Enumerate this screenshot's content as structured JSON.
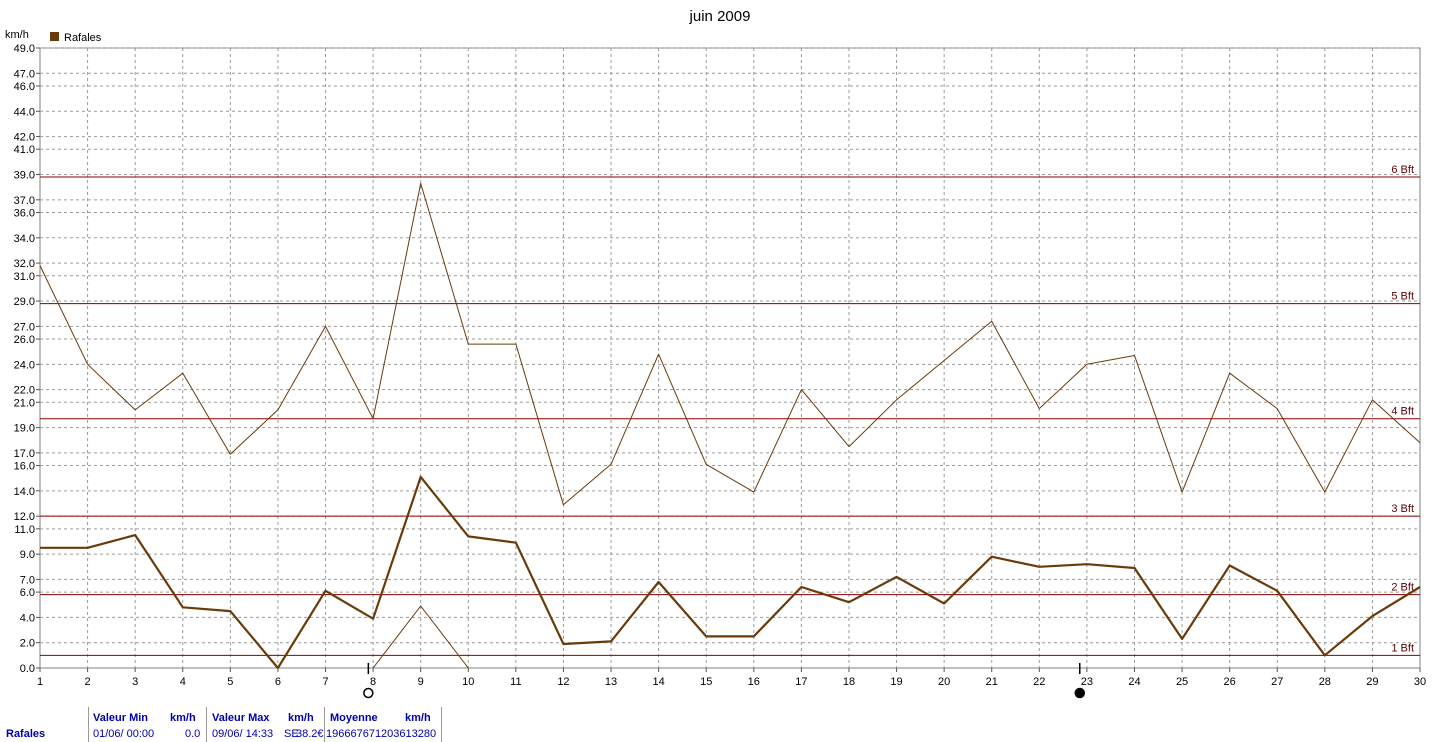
{
  "chart_data": {
    "type": "line",
    "title": "juin 2009",
    "ylabel": "km/h",
    "legend": "Rafales",
    "legend_color": "#6b3a0a",
    "x": [
      1,
      2,
      3,
      4,
      5,
      6,
      7,
      8,
      9,
      10,
      11,
      12,
      13,
      14,
      15,
      16,
      17,
      18,
      19,
      20,
      21,
      22,
      23,
      24,
      25,
      26,
      27,
      28,
      29,
      30
    ],
    "x_ticks": [
      "1",
      "2",
      "3",
      "4",
      "5",
      "6",
      "7",
      "8",
      "9",
      "10",
      "11",
      "12",
      "13",
      "14",
      "15",
      "16",
      "17",
      "18",
      "19",
      "20",
      "21",
      "22",
      "23",
      "24",
      "25",
      "26",
      "27",
      "28",
      "29",
      "30"
    ],
    "y_ticks": [
      "0.0",
      "2.0",
      "4.0",
      "6.0",
      "7.0",
      "9.0",
      "11.0",
      "12.0",
      "14.0",
      "16.0",
      "17.0",
      "19.0",
      "21.0",
      "22.0",
      "24.0",
      "26.0",
      "27.0",
      "29.0",
      "31.0",
      "32.0",
      "34.0",
      "36.0",
      "37.0",
      "39.0",
      "41.0",
      "42.0",
      "44.0",
      "46.0",
      "47.0",
      "49.0"
    ],
    "ylim": [
      0,
      49
    ],
    "grid": true,
    "series": [
      {
        "name": "max",
        "color": "#6b3a0a",
        "width": 1,
        "values": [
          31.8,
          24.0,
          20.4,
          23.3,
          16.9,
          20.4,
          27.0,
          19.7,
          38.3,
          25.6,
          25.6,
          12.9,
          16.1,
          24.8,
          16.1,
          13.9,
          22.0,
          17.5,
          21.2,
          24.3,
          27.4,
          20.5,
          24.0,
          24.7,
          13.9,
          23.3,
          20.5,
          13.9,
          21.2,
          17.8
        ]
      },
      {
        "name": "avg",
        "color": "#6b3a0a",
        "width": 2.2,
        "values": [
          9.5,
          9.5,
          10.5,
          4.8,
          4.5,
          0.0,
          6.1,
          3.9,
          15.1,
          10.4,
          9.9,
          1.9,
          2.1,
          6.8,
          2.5,
          2.5,
          6.4,
          5.2,
          7.2,
          5.1,
          8.8,
          8.0,
          8.2,
          7.9,
          2.3,
          8.1,
          6.1,
          1.0,
          4.1,
          6.4
        ]
      },
      {
        "name": "min",
        "color": "#6b3a0a",
        "width": 1,
        "values": [
          null,
          null,
          null,
          null,
          null,
          null,
          null,
          0.0,
          4.9,
          0.0,
          null,
          null,
          null,
          null,
          null,
          null,
          null,
          null,
          null,
          null,
          null,
          null,
          null,
          null,
          null,
          null,
          null,
          null,
          null,
          null
        ]
      }
    ],
    "beaufort": [
      {
        "label": "1 Bft",
        "value": 1.0
      },
      {
        "label": "2 Bft",
        "value": 5.8
      },
      {
        "label": "3 Bft",
        "value": 12.0
      },
      {
        "label": "4 Bft",
        "value": 19.7
      },
      {
        "label": "5 Bft",
        "value": 28.8
      },
      {
        "label": "6 Bft",
        "value": 38.8
      }
    ],
    "beaufort_color": "#8b0000",
    "markers": [
      {
        "x": 7.9,
        "icon": "empty-circle-icon"
      },
      {
        "x": 22.85,
        "icon": "filled-circle-icon"
      }
    ]
  },
  "stats": {
    "series_label": "Rafales",
    "min_header": "Valeur Min",
    "min_unit": "km/h",
    "min_date": "01/06/  00:00",
    "min_value": "0.0",
    "max_header": "Valeur Max",
    "max_unit": "km/h",
    "max_date": "09/06/  14:33",
    "max_dir": "SE",
    "max_value": "38.2€",
    "avg_header": "Moyenne",
    "avg_unit": "km/h",
    "avg_value": "196667671203613280"
  }
}
